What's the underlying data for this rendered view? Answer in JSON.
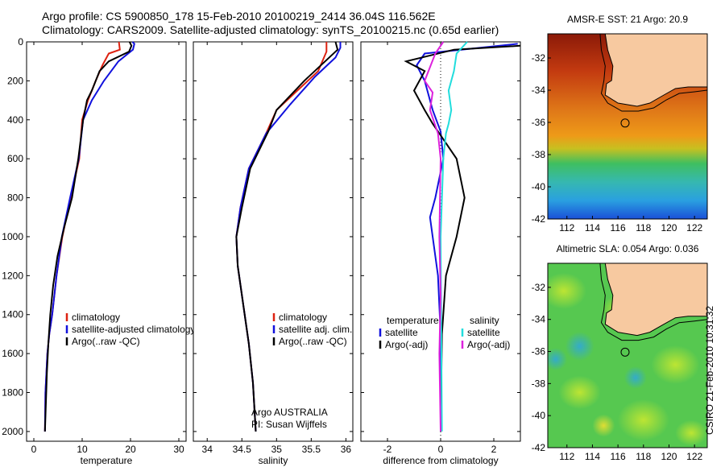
{
  "header": {
    "title_line1": "Argo profile: CS 5900850_178 15-Feb-2010 20100219_2414 36.04S 116.562E",
    "title_line2": "Climatology: CARS2009. Satellite-adjusted climatology: synTS_20100215.nc (0.65d earlier)"
  },
  "stamp": "CSIRO 21-Feb-2010 10:31:32",
  "colors": {
    "climatology": "#dd2211",
    "satellite": "#1111dd",
    "argo": "#000000",
    "cyan": "#22dddd",
    "magenta": "#dd22dd",
    "land": "#f7c9a0"
  },
  "chart_data": [
    {
      "type": "line",
      "xlabel": "temperature",
      "ylim": [
        0,
        2050
      ],
      "xlim": [
        -1.5,
        31.5
      ],
      "xticks": [
        0,
        10,
        20,
        30
      ],
      "yticks": [
        0,
        200,
        400,
        600,
        800,
        1000,
        1200,
        1400,
        1600,
        1800,
        2000
      ],
      "legend": [
        "climatology",
        "satellite-adjusted climatology",
        "Argo(..raw -QC)"
      ],
      "series": [
        {
          "name": "climatology",
          "color": "#dd2211",
          "x": [
            17.6,
            17.8,
            15.5,
            14.2,
            12.8,
            11.2,
            10.0,
            9.4,
            7.6,
            5.9,
            4.7,
            3.8,
            3.2,
            2.8,
            2.6,
            2.4,
            2.3
          ],
          "y": [
            0,
            40,
            60,
            120,
            200,
            300,
            400,
            600,
            800,
            1000,
            1200,
            1400,
            1500,
            1600,
            1700,
            1800,
            2000
          ]
        },
        {
          "name": "satellite-adjusted climatology",
          "color": "#1111dd",
          "x": [
            20.4,
            20.8,
            20.5,
            17.5,
            14.5,
            12.0,
            10.2,
            9.3,
            7.5,
            5.8,
            4.7,
            3.8,
            3.2,
            2.8,
            2.6,
            2.4,
            2.3
          ],
          "y": [
            0,
            10,
            40,
            100,
            200,
            300,
            400,
            600,
            800,
            1000,
            1200,
            1400,
            1500,
            1600,
            1700,
            1800,
            2000
          ]
        },
        {
          "name": "Argo(..raw -QC)",
          "color": "#000000",
          "x": [
            19.8,
            20.2,
            19.7,
            15.5,
            13.6,
            12.0,
            11.0,
            10.2,
            9.2,
            7.9,
            6.3,
            4.9,
            4.0,
            3.4,
            3.0,
            2.7,
            2.5,
            2.3
          ],
          "y": [
            0,
            20,
            50,
            100,
            150,
            250,
            300,
            400,
            600,
            800,
            950,
            1100,
            1250,
            1400,
            1550,
            1700,
            1850,
            2000
          ]
        }
      ],
      "annotations": []
    },
    {
      "type": "line",
      "xlabel": "salinity",
      "ylim": [
        0,
        2050
      ],
      "xlim": [
        33.8,
        36.1
      ],
      "xticks": [
        34,
        34.5,
        35,
        35.5,
        36
      ],
      "yticks": [
        0,
        200,
        400,
        600,
        800,
        1000,
        1200,
        1400,
        1600,
        1800,
        2000
      ],
      "legend": [
        "climatology",
        "satellite adj. clim.",
        "Argo(..raw -QC)"
      ],
      "series": [
        {
          "name": "climatology",
          "color": "#dd2211",
          "x": [
            35.72,
            35.72,
            35.6,
            35.3,
            35.0,
            34.85,
            34.6,
            34.48,
            34.42,
            34.44,
            34.52,
            34.6,
            34.66,
            34.7
          ],
          "y": [
            0,
            50,
            150,
            250,
            350,
            470,
            650,
            850,
            1000,
            1150,
            1350,
            1550,
            1750,
            2000
          ]
        },
        {
          "name": "satellite adj. clim.",
          "color": "#1111dd",
          "x": [
            35.92,
            35.92,
            35.85,
            35.55,
            35.2,
            34.85,
            34.6,
            34.48,
            34.42,
            34.44,
            34.52,
            34.6,
            34.66,
            34.7
          ],
          "y": [
            0,
            30,
            80,
            180,
            320,
            470,
            650,
            850,
            1000,
            1150,
            1350,
            1550,
            1750,
            2000
          ]
        },
        {
          "name": "Argo(..raw -QC)",
          "color": "#000000",
          "x": [
            35.85,
            35.88,
            35.7,
            35.4,
            35.0,
            34.88,
            34.62,
            34.5,
            34.42,
            34.44,
            34.52,
            34.6,
            34.66,
            34.7
          ],
          "y": [
            0,
            40,
            100,
            200,
            350,
            460,
            650,
            850,
            1000,
            1150,
            1350,
            1550,
            1750,
            2000
          ]
        }
      ],
      "annotations": [
        "Argo AUSTRALIA",
        "PI: Susan Wijffels"
      ]
    },
    {
      "type": "line",
      "xlabel": "difference from climatology",
      "ylim": [
        0,
        2050
      ],
      "xlim": [
        -3,
        3
      ],
      "xticks": [
        -2,
        0,
        2
      ],
      "yticks": [
        0,
        200,
        400,
        600,
        800,
        1000,
        1200,
        1400,
        1600,
        1800,
        2000
      ],
      "legend_headers": [
        "temperature",
        "salinity"
      ],
      "legend": [
        "satellite",
        "Argo(-adj)",
        "satellite",
        "Argo(-adj)"
      ],
      "series": [
        {
          "name": "temperature satellite",
          "color": "#1111dd",
          "x": [
            2.9,
            1.5,
            -0.6,
            -0.9,
            -0.6,
            -0.3,
            0,
            0.1,
            -0.2,
            -0.4,
            -0.3,
            -0.1,
            0,
            0
          ],
          "y": [
            10,
            30,
            60,
            120,
            200,
            350,
            460,
            600,
            800,
            900,
            1000,
            1200,
            1500,
            2000
          ]
        },
        {
          "name": "temperature Argo(-adj)",
          "color": "#000000",
          "x": [
            3.0,
            0.5,
            -1.3,
            -0.6,
            -1.0,
            -0.6,
            -0.3,
            0,
            0.6,
            0.9,
            0.6,
            0.2,
            0.05,
            0
          ],
          "y": [
            20,
            40,
            100,
            150,
            250,
            350,
            420,
            480,
            600,
            800,
            1000,
            1200,
            1500,
            2000
          ]
        },
        {
          "name": "salinity satellite",
          "color": "#22dddd",
          "x": [
            1.0,
            0.6,
            0.5,
            0.3,
            0.4,
            0.3,
            0.2,
            0.1,
            0,
            0.05
          ],
          "y": [
            0,
            60,
            150,
            250,
            350,
            420,
            470,
            600,
            1000,
            2000
          ]
        },
        {
          "name": "salinity Argo(-adj)",
          "color": "#dd22dd",
          "x": [
            0.1,
            -0.2,
            -0.6,
            -0.3,
            -0.4,
            -0.1,
            0,
            -0.05,
            0,
            -0.05,
            0
          ],
          "y": [
            0,
            60,
            200,
            260,
            350,
            470,
            600,
            1000,
            1300,
            1600,
            2000
          ]
        }
      ],
      "annotations": []
    },
    {
      "type": "heatmap",
      "title": "AMSR-E SST: 21 Argo: 20.9",
      "xlim": [
        110.5,
        123
      ],
      "ylim": [
        -42,
        -30.5
      ],
      "xticks": [
        112,
        114,
        116,
        118,
        120,
        122
      ],
      "yticks": [
        -32,
        -34,
        -36,
        -38,
        -40,
        -42
      ],
      "marker": {
        "lon": 116.56,
        "lat": -36.04
      }
    },
    {
      "type": "heatmap",
      "title": "Altimetric SLA: 0.054 Argo: 0.036",
      "xlim": [
        110.5,
        123
      ],
      "ylim": [
        -42,
        -30.5
      ],
      "xticks": [
        112,
        114,
        116,
        118,
        120,
        122
      ],
      "yticks": [
        -32,
        -34,
        -36,
        -38,
        -40,
        -42
      ],
      "marker": {
        "lon": 116.56,
        "lat": -36.04
      }
    }
  ]
}
